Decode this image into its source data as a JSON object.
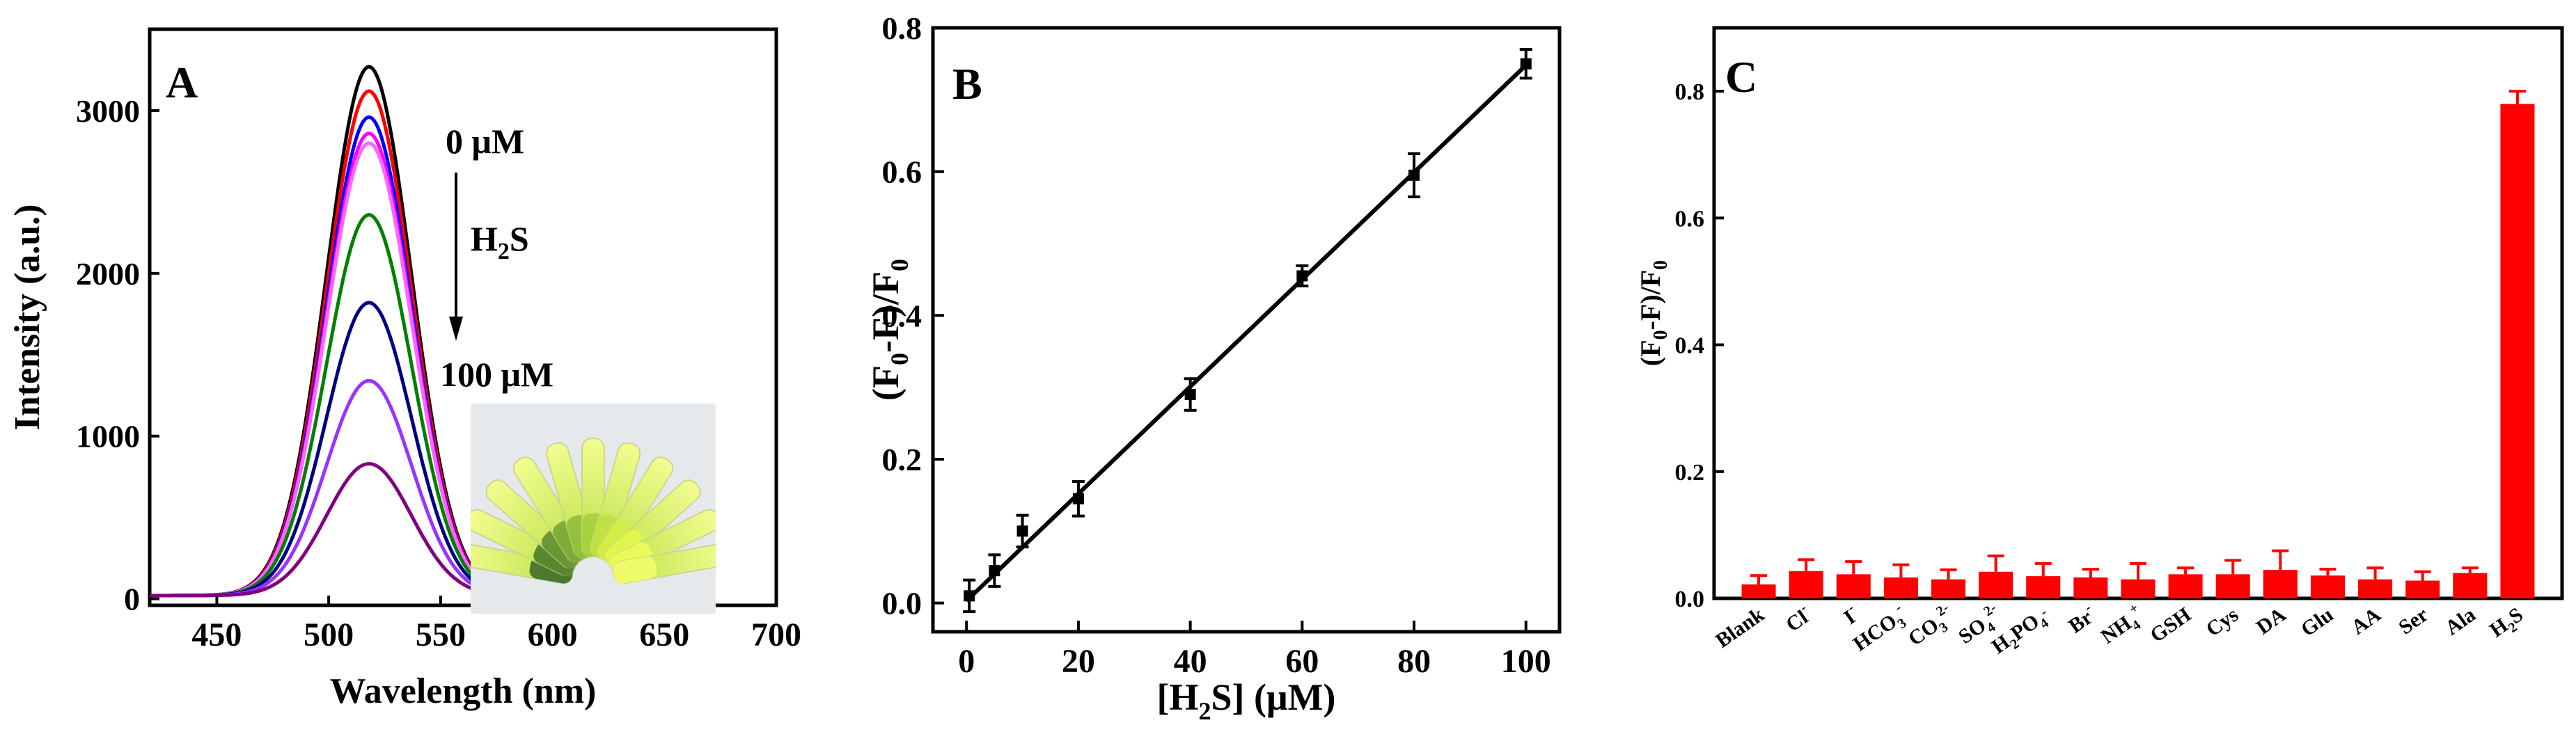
{
  "chart_data": [
    {
      "panel": "A",
      "type": "line",
      "xlabel": "Wavelength (nm)",
      "ylabel": "Intensity (a.u.)",
      "xlim": [
        420,
        700
      ],
      "ylim": [
        -40,
        3500
      ],
      "xticks": [
        450,
        500,
        550,
        600,
        650,
        700
      ],
      "yticks": [
        0,
        1000,
        2000,
        3000
      ],
      "peak_wavelength": 518,
      "curve_sigma_nm": 19,
      "baseline": 20,
      "series": [
        {
          "color": "#000000",
          "peak": 3270
        },
        {
          "color": "#ff0000",
          "peak": 3120
        },
        {
          "color": "#0000ff",
          "peak": 2960
        },
        {
          "color": "#ff00ff",
          "peak": 2860
        },
        {
          "color": "#ff66ff",
          "peak": 2800
        },
        {
          "color": "#008000",
          "peak": 2360
        },
        {
          "color": "#000080",
          "peak": 1820
        },
        {
          "color": "#9933ff",
          "peak": 1340
        },
        {
          "color": "#800080",
          "peak": 830
        }
      ],
      "annotations": {
        "start": "0 μM",
        "analyte_main": "H",
        "analyte_sub": "2",
        "analyte_end": "S",
        "end": "100 μM"
      }
    },
    {
      "panel": "B",
      "type": "scatter",
      "xlabel_pre": "[H",
      "xlabel_sub": "2",
      "xlabel_post": "S] (μM)",
      "ylabel_parts": [
        "(F",
        "0",
        "-F)/F",
        "0"
      ],
      "xlim": [
        -6,
        106
      ],
      "ylim": [
        -0.04,
        0.8
      ],
      "xticks": [
        0,
        20,
        40,
        60,
        80,
        100
      ],
      "yticks": [
        0.0,
        0.2,
        0.4,
        0.6,
        0.8
      ],
      "x": [
        0.5,
        5,
        10,
        20,
        40,
        60,
        80,
        100
      ],
      "y": [
        0.01,
        0.045,
        0.1,
        0.145,
        0.29,
        0.455,
        0.595,
        0.75
      ],
      "err": [
        0.022,
        0.022,
        0.022,
        0.024,
        0.022,
        0.014,
        0.03,
        0.02
      ],
      "fit": {
        "x": [
          0,
          100
        ],
        "y": [
          0.003,
          0.748
        ]
      }
    },
    {
      "panel": "C",
      "type": "bar",
      "color": "#ff0000",
      "ylabel_parts": [
        "(F",
        "0",
        "-F)/F",
        "0"
      ],
      "ylim": [
        0,
        0.9
      ],
      "yticks": [
        0.0,
        0.2,
        0.4,
        0.6,
        0.8
      ],
      "categories": [
        {
          "base": "Blank",
          "sup": "",
          "sub": ""
        },
        {
          "base": "Cl",
          "sup": "-",
          "sub": ""
        },
        {
          "base": "I",
          "sup": "-",
          "sub": ""
        },
        {
          "base": "HCO",
          "sup": "-",
          "sub": "3"
        },
        {
          "base": "CO",
          "sup": "2-",
          "sub": "3"
        },
        {
          "base": "SO",
          "sup": "2-",
          "sub": "4"
        },
        {
          "base": "H",
          "sup": "-",
          "sub": "2",
          "post": "PO",
          "post_sub": "4"
        },
        {
          "base": "Br",
          "sup": "-",
          "sub": ""
        },
        {
          "base": "NH",
          "sup": "+",
          "sub": "4"
        },
        {
          "base": "GSH",
          "sup": "",
          "sub": ""
        },
        {
          "base": "Cys",
          "sup": "",
          "sub": ""
        },
        {
          "base": "DA",
          "sup": "",
          "sub": ""
        },
        {
          "base": "Glu",
          "sup": "",
          "sub": ""
        },
        {
          "base": "AA",
          "sup": "",
          "sub": ""
        },
        {
          "base": "Ser",
          "sup": "",
          "sub": ""
        },
        {
          "base": "Ala",
          "sup": "",
          "sub": ""
        },
        {
          "base": "H",
          "sup": "",
          "sub": "2",
          "post": "S",
          "post_sub": ""
        }
      ],
      "values": [
        0.022,
        0.043,
        0.038,
        0.033,
        0.03,
        0.042,
        0.035,
        0.033,
        0.03,
        0.038,
        0.038,
        0.045,
        0.036,
        0.03,
        0.028,
        0.04,
        0.78
      ],
      "err": [
        0.014,
        0.018,
        0.02,
        0.02,
        0.015,
        0.025,
        0.02,
        0.013,
        0.025,
        0.01,
        0.022,
        0.03,
        0.01,
        0.018,
        0.014,
        0.008,
        0.02
      ]
    }
  ],
  "panel_labels": {
    "a": "A",
    "b": "B",
    "c": "C"
  }
}
